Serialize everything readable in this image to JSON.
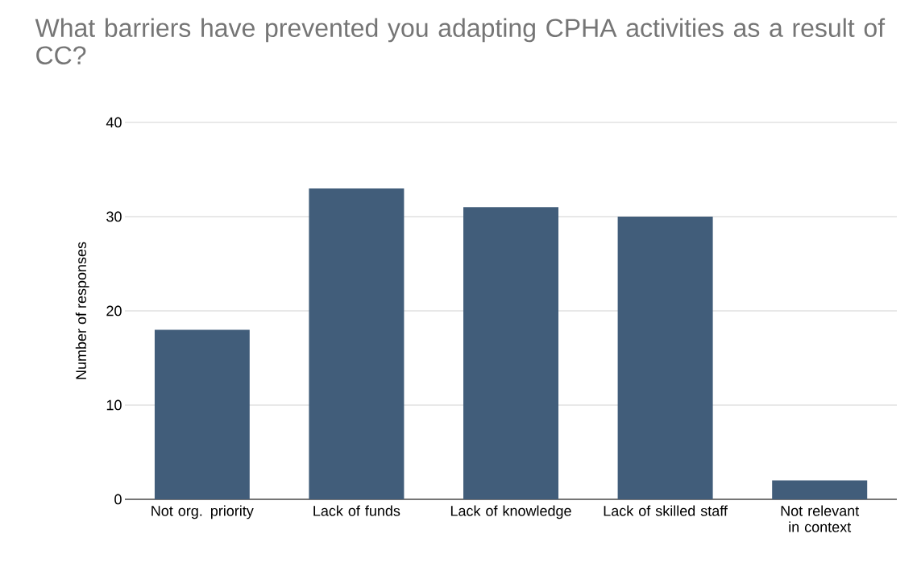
{
  "chart_data": {
    "type": "bar",
    "title": "What barriers have prevented you adapting CPHA activities as a result of CC?",
    "ylabel": "Number of responses",
    "categories": [
      "Not org. priority",
      "Lack of funds",
      "Lack of knowledge",
      "Lack of skilled staff",
      "Not relevant in context"
    ],
    "values": [
      18,
      33,
      31,
      30,
      2
    ],
    "color": "#415d7a",
    "ylim": [
      0,
      40
    ],
    "yticks": [
      0,
      10,
      20,
      30,
      40
    ],
    "grid": "y"
  }
}
